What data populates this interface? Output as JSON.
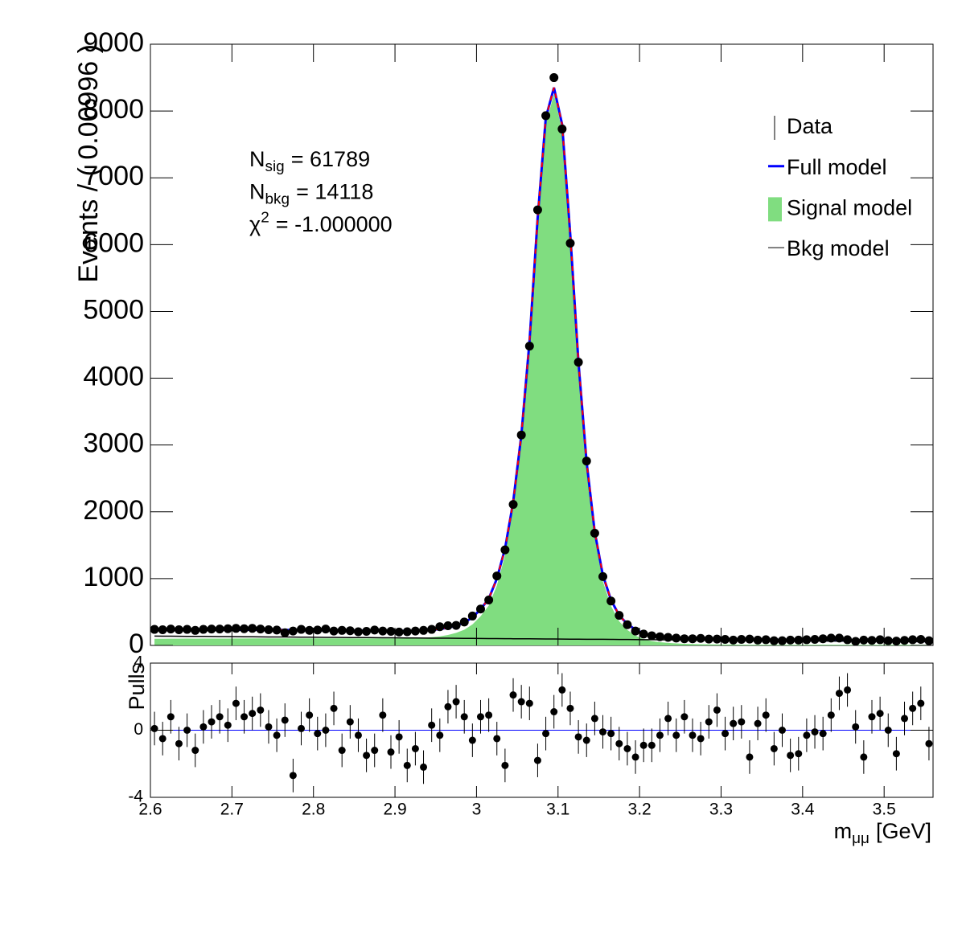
{
  "chart_data": {
    "type": "ratio",
    "x": [
      2.605,
      2.615,
      2.625,
      2.635,
      2.645,
      2.655,
      2.665,
      2.675,
      2.685,
      2.695,
      2.705,
      2.715,
      2.725,
      2.735,
      2.745,
      2.755,
      2.765,
      2.775,
      2.785,
      2.795,
      2.805,
      2.815,
      2.825,
      2.835,
      2.845,
      2.855,
      2.865,
      2.875,
      2.885,
      2.895,
      2.905,
      2.915,
      2.925,
      2.935,
      2.945,
      2.955,
      2.965,
      2.975,
      2.985,
      2.995,
      3.005,
      3.015,
      3.025,
      3.035,
      3.045,
      3.055,
      3.065,
      3.075,
      3.085,
      3.095,
      3.105,
      3.115,
      3.125,
      3.135,
      3.145,
      3.155,
      3.165,
      3.175,
      3.185,
      3.195,
      3.205,
      3.215,
      3.225,
      3.235,
      3.245,
      3.255,
      3.265,
      3.275,
      3.285,
      3.295,
      3.305,
      3.315,
      3.325,
      3.335,
      3.345,
      3.355,
      3.365,
      3.375,
      3.385,
      3.395,
      3.405,
      3.415,
      3.425,
      3.435,
      3.445,
      3.455,
      3.465,
      3.475,
      3.485,
      3.495,
      3.505,
      3.515,
      3.525,
      3.535,
      3.545,
      3.555
    ],
    "xlim": [
      2.6,
      3.56
    ],
    "xticks": [
      2.6,
      2.7,
      2.8,
      2.9,
      3,
      3.1,
      3.2,
      3.3,
      3.4,
      3.5
    ],
    "xlabel": {
      "main": "m",
      "sub": "μμ",
      "rest": "[GeV]"
    },
    "main": {
      "ylabel": "Events / ( 0.00996 )",
      "ylim": [
        0,
        9000
      ],
      "yticks": [
        0,
        1000,
        2000,
        3000,
        4000,
        5000,
        6000,
        7000,
        8000,
        9000
      ],
      "legend_position": "top-right",
      "annotations": [
        {
          "main": "N",
          "sub": "sig",
          "rest": "= 61789"
        },
        {
          "main": "N",
          "sub": "bkg",
          "rest": "= 14118"
        },
        {
          "main": "χ",
          "sup": "2",
          "rest": "= -1.000000"
        }
      ],
      "series": [
        {
          "name": "Data",
          "kind": "points",
          "color": "#000000",
          "values": [
            240,
            235,
            245,
            235,
            240,
            225,
            240,
            245,
            245,
            250,
            255,
            250,
            255,
            245,
            235,
            230,
            190,
            215,
            240,
            225,
            230,
            245,
            215,
            225,
            220,
            205,
            210,
            230,
            215,
            210,
            200,
            205,
            215,
            225,
            240,
            280,
            295,
            300,
            350,
            440,
            545,
            680,
            1040,
            1430,
            2110,
            3150,
            4480,
            6520,
            7930,
            8500,
            7730,
            6020,
            4240,
            2760,
            1680,
            1030,
            665,
            450,
            310,
            215,
            170,
            145,
            130,
            120,
            110,
            100,
            100,
            105,
            95,
            95,
            90,
            80,
            90,
            95,
            80,
            85,
            70,
            70,
            80,
            80,
            85,
            90,
            100,
            110,
            110,
            85,
            60,
            80,
            75,
            85,
            70,
            65,
            75,
            85,
            90,
            70
          ]
        },
        {
          "name": "Full model",
          "kind": "line",
          "color": "#0000ff",
          "dash_color": "#ff0000",
          "values": [
            240,
            239,
            239,
            238,
            238,
            237,
            237,
            236,
            236,
            235,
            235,
            234,
            234,
            233,
            233,
            232,
            231,
            230,
            229,
            228,
            227,
            226,
            225,
            224,
            223,
            222,
            221,
            220,
            219,
            218,
            217,
            218,
            220,
            224,
            232,
            245,
            265,
            295,
            340,
            420,
            540,
            700,
            1000,
            1450,
            2150,
            3150,
            4550,
            6400,
            7900,
            8350,
            7800,
            6150,
            4250,
            2750,
            1700,
            1050,
            680,
            450,
            320,
            235,
            180,
            150,
            132,
            120,
            112,
            106,
            102,
            98,
            95,
            93,
            91,
            89,
            87,
            85,
            84,
            83,
            82,
            81,
            80,
            79,
            78,
            77,
            76,
            75,
            74,
            73,
            72,
            71,
            70,
            70,
            69,
            68,
            67,
            66,
            65,
            64
          ]
        },
        {
          "name": "Signal model",
          "kind": "area",
          "color": "#80dd80",
          "values": [
            100,
            100,
            101,
            101,
            102,
            101,
            102,
            102,
            103,
            103,
            104,
            104,
            105,
            105,
            106,
            105,
            105,
            105,
            105,
            105,
            105,
            105,
            105,
            105,
            105,
            104,
            104,
            104,
            104,
            104,
            104,
            106,
            109,
            114,
            123,
            136,
            157,
            188,
            234,
            315,
            436,
            597,
            898,
            1349,
            2050,
            3050,
            4451,
            6302,
            7803,
            8254,
            7705,
            6056,
            4157,
            2658,
            1609,
            959,
            590,
            361,
            232,
            148,
            94,
            65,
            48,
            37,
            30,
            24,
            21,
            18,
            16,
            15,
            14,
            13,
            12,
            11,
            11,
            10,
            10,
            10,
            10,
            10,
            10,
            10,
            10,
            10,
            10,
            9,
            9,
            9,
            9,
            10,
            10,
            10,
            10,
            10,
            10,
            9
          ]
        },
        {
          "name": "Bkg model",
          "kind": "line",
          "color": "#000000",
          "values": [
            140,
            139,
            138,
            137,
            136,
            136,
            135,
            134,
            133,
            132,
            131,
            130,
            129,
            128,
            127,
            127,
            126,
            125,
            124,
            123,
            122,
            121,
            120,
            119,
            118,
            118,
            117,
            116,
            115,
            114,
            113,
            112,
            111,
            110,
            109,
            109,
            108,
            107,
            106,
            105,
            104,
            103,
            102,
            101,
            100,
            100,
            99,
            98,
            97,
            96,
            95,
            94,
            93,
            92,
            91,
            91,
            90,
            89,
            88,
            87,
            86,
            85,
            84,
            83,
            82,
            82,
            81,
            80,
            79,
            78,
            77,
            76,
            75,
            74,
            73,
            73,
            72,
            71,
            70,
            69,
            68,
            67,
            66,
            65,
            64,
            64,
            63,
            62,
            61,
            60,
            59,
            58,
            57,
            56,
            55,
            55
          ]
        }
      ]
    },
    "pulls": {
      "ylabel": "Pulls",
      "ylim": [
        -4,
        4
      ],
      "yticks": [
        -4,
        0,
        4
      ],
      "color": "#000000",
      "zero_color": "#0000ff",
      "values": [
        0.1,
        -0.5,
        0.8,
        -0.8,
        0,
        -1.2,
        0.2,
        0.5,
        0.8,
        0.3,
        1.6,
        0.8,
        1.0,
        1.2,
        0.2,
        -0.3,
        0.6,
        -2.7,
        0.1,
        0.9,
        -0.2,
        0,
        1.3,
        -1.2,
        0.5,
        -0.3,
        -1.5,
        -1.2,
        0.9,
        -1.3,
        -0.4,
        -2.1,
        -1.1,
        -2.2,
        0.3,
        -0.3,
        1.4,
        1.7,
        0.8,
        -0.6,
        0.8,
        0.9,
        -0.5,
        -2.1,
        2.1,
        1.7,
        1.6,
        -1.8,
        -0.2,
        1.1,
        2.4,
        1.3,
        -0.4,
        -0.6,
        0.7,
        -0.1,
        -0.2,
        -0.8,
        -1.1,
        -1.6,
        -0.9,
        -0.9,
        -0.3,
        0.7,
        -0.3,
        0.8,
        -0.3,
        -0.5,
        0.5,
        1.2,
        -0.2,
        0.4,
        0.5,
        -1.6,
        0.4,
        0.9,
        -1.1,
        0,
        -1.5,
        -1.4,
        -0.3,
        -0.1,
        -0.2,
        0.9,
        2.2,
        2.4,
        0.2,
        -1.6,
        0.8,
        1.0,
        0,
        -1.4,
        0.7,
        1.3,
        1.6,
        -0.8
      ],
      "errors": [
        1,
        1,
        1,
        1,
        1,
        1,
        1,
        1,
        1,
        1,
        1,
        1,
        1,
        1,
        1,
        1,
        1,
        1,
        1,
        1,
        1,
        1,
        1,
        1,
        1,
        1,
        1,
        1,
        1,
        1,
        1,
        1,
        1,
        1,
        1,
        1,
        1,
        1,
        1,
        1,
        1,
        1,
        1,
        1,
        1,
        1,
        1,
        1,
        1,
        1,
        1,
        1,
        1,
        1,
        1,
        1,
        1,
        1,
        1,
        1,
        1,
        1,
        1,
        1,
        1,
        1,
        1,
        1,
        1,
        1,
        1,
        1,
        1,
        1,
        1,
        1,
        1,
        1,
        1,
        1,
        1,
        1,
        1,
        1,
        1,
        1,
        1,
        1,
        1,
        1,
        1,
        1,
        1,
        1,
        1,
        1
      ]
    }
  }
}
